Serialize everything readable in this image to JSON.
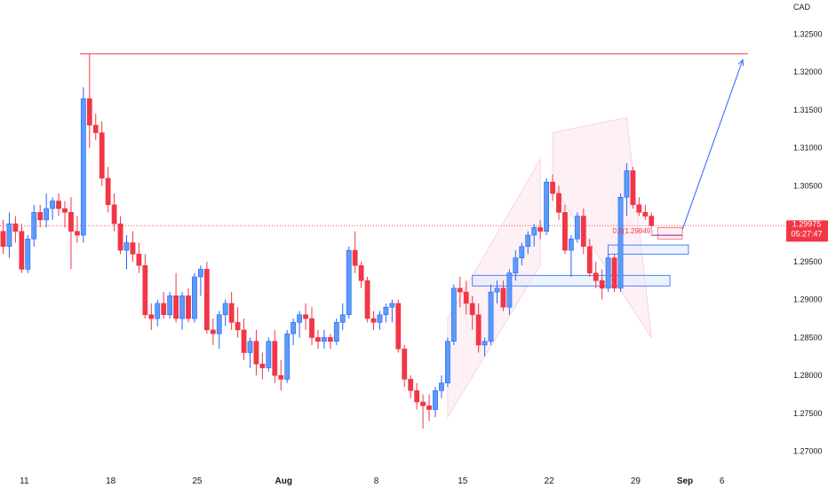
{
  "chart_data": {
    "type": "candlestick",
    "currency": "CAD",
    "ylim": [
      1.2675,
      1.3295
    ],
    "y_ticks": [
      "1.32500",
      "1.32000",
      "1.31500",
      "1.31000",
      "1.30500",
      "1.30000",
      "1.29500",
      "1.29000",
      "1.28500",
      "1.28000",
      "1.27500",
      "1.27000"
    ],
    "x_ticks": [
      {
        "label": "11",
        "bar": 3
      },
      {
        "label": "18",
        "bar": 17
      },
      {
        "label": "25",
        "bar": 31
      },
      {
        "label": "Aug",
        "bar": 45
      },
      {
        "label": "8",
        "bar": 60
      },
      {
        "label": "15",
        "bar": 74
      },
      {
        "label": "22",
        "bar": 88
      },
      {
        "label": "29",
        "bar": 102
      },
      {
        "label": "Sep",
        "bar": 110
      },
      {
        "label": "6",
        "bar": 116
      }
    ],
    "last_price": {
      "value": "1.29975",
      "countdown": "05:27:47",
      "numeric": 1.29975
    },
    "colors": {
      "up": "#5b9cf6",
      "down": "#f23645",
      "up_border": "#2962ff",
      "price_line": "#f23645",
      "annotation": "#f23645",
      "arrow": "#2962ff",
      "channel_fill": "#fce4ec"
    },
    "annotations": {
      "fib_label": "0.5(1.29849)",
      "resistance_level": 1.3224
    },
    "candles": [
      [
        1.299,
        1.3005,
        1.296,
        1.297
      ],
      [
        1.297,
        1.3015,
        1.2955,
        1.3
      ],
      [
        1.3,
        1.301,
        1.2975,
        1.299
      ],
      [
        1.299,
        1.3,
        1.2935,
        1.294
      ],
      [
        1.294,
        1.2985,
        1.2935,
        1.298
      ],
      [
        1.298,
        1.3025,
        1.297,
        1.3015
      ],
      [
        1.3015,
        1.3025,
        1.2995,
        1.3005
      ],
      [
        1.3005,
        1.304,
        1.2995,
        1.302
      ],
      [
        1.302,
        1.3035,
        1.3005,
        1.303
      ],
      [
        1.303,
        1.304,
        1.301,
        1.302
      ],
      [
        1.302,
        1.303,
        1.2995,
        1.3015
      ],
      [
        1.3015,
        1.3035,
        1.294,
        1.299
      ],
      [
        1.299,
        1.301,
        1.2975,
        1.2985
      ],
      [
        1.2985,
        1.318,
        1.2975,
        1.3165
      ],
      [
        1.3165,
        1.3224,
        1.31,
        1.313
      ],
      [
        1.313,
        1.3145,
        1.311,
        1.312
      ],
      [
        1.312,
        1.3135,
        1.305,
        1.306
      ],
      [
        1.306,
        1.3075,
        1.3015,
        1.3025
      ],
      [
        1.3025,
        1.304,
        1.299,
        1.3
      ],
      [
        1.3,
        1.301,
        1.296,
        1.2965
      ],
      [
        1.2965,
        1.2985,
        1.294,
        1.2975
      ],
      [
        1.2975,
        1.299,
        1.295,
        1.296
      ],
      [
        1.296,
        1.2975,
        1.2935,
        1.2945
      ],
      [
        1.2945,
        1.296,
        1.2875,
        1.288
      ],
      [
        1.288,
        1.2895,
        1.286,
        1.2875
      ],
      [
        1.2875,
        1.29,
        1.2865,
        1.2895
      ],
      [
        1.2895,
        1.291,
        1.2875,
        1.288
      ],
      [
        1.288,
        1.291,
        1.2875,
        1.2905
      ],
      [
        1.2905,
        1.2935,
        1.287,
        1.2875
      ],
      [
        1.2875,
        1.291,
        1.286,
        1.2905
      ],
      [
        1.2905,
        1.2915,
        1.287,
        1.2875
      ],
      [
        1.2875,
        1.2935,
        1.287,
        1.293
      ],
      [
        1.293,
        1.2945,
        1.2905,
        1.294
      ],
      [
        1.294,
        1.295,
        1.2855,
        1.286
      ],
      [
        1.286,
        1.2875,
        1.284,
        1.2855
      ],
      [
        1.2855,
        1.2885,
        1.2835,
        1.288
      ],
      [
        1.288,
        1.29,
        1.2865,
        1.2895
      ],
      [
        1.2895,
        1.291,
        1.286,
        1.287
      ],
      [
        1.287,
        1.289,
        1.285,
        1.286
      ],
      [
        1.286,
        1.2875,
        1.282,
        1.283
      ],
      [
        1.283,
        1.285,
        1.281,
        1.2845
      ],
      [
        1.2845,
        1.286,
        1.28,
        1.2815
      ],
      [
        1.2815,
        1.283,
        1.2795,
        1.281
      ],
      [
        1.281,
        1.285,
        1.2805,
        1.2845
      ],
      [
        1.2845,
        1.286,
        1.279,
        1.28
      ],
      [
        1.28,
        1.282,
        1.278,
        1.2795
      ],
      [
        1.2795,
        1.286,
        1.279,
        1.2855
      ],
      [
        1.2855,
        1.2875,
        1.284,
        1.287
      ],
      [
        1.287,
        1.2885,
        1.285,
        1.288
      ],
      [
        1.288,
        1.2895,
        1.286,
        1.2875
      ],
      [
        1.2875,
        1.289,
        1.284,
        1.285
      ],
      [
        1.285,
        1.286,
        1.2835,
        1.2845
      ],
      [
        1.2845,
        1.286,
        1.2835,
        1.285
      ],
      [
        1.285,
        1.2855,
        1.2835,
        1.2845
      ],
      [
        1.2845,
        1.2875,
        1.284,
        1.287
      ],
      [
        1.287,
        1.2895,
        1.286,
        1.288
      ],
      [
        1.288,
        1.297,
        1.2875,
        1.2965
      ],
      [
        1.2965,
        1.299,
        1.2935,
        1.2945
      ],
      [
        1.2945,
        1.295,
        1.2915,
        1.2925
      ],
      [
        1.2925,
        1.293,
        1.287,
        1.2875
      ],
      [
        1.2875,
        1.2885,
        1.286,
        1.287
      ],
      [
        1.287,
        1.2885,
        1.286,
        1.288
      ],
      [
        1.288,
        1.2895,
        1.287,
        1.289
      ],
      [
        1.289,
        1.29,
        1.287,
        1.2895
      ],
      [
        1.2895,
        1.29,
        1.283,
        1.2835
      ],
      [
        1.2835,
        1.284,
        1.2785,
        1.2795
      ],
      [
        1.2795,
        1.28,
        1.277,
        1.278
      ],
      [
        1.278,
        1.279,
        1.2755,
        1.2765
      ],
      [
        1.2765,
        1.2775,
        1.273,
        1.276
      ],
      [
        1.276,
        1.2775,
        1.274,
        1.2755
      ],
      [
        1.2755,
        1.2785,
        1.2745,
        1.278
      ],
      [
        1.278,
        1.28,
        1.277,
        1.279
      ],
      [
        1.279,
        1.285,
        1.2785,
        1.2845
      ],
      [
        1.2845,
        1.292,
        1.284,
        1.2915
      ],
      [
        1.2915,
        1.293,
        1.289,
        1.291
      ],
      [
        1.291,
        1.2925,
        1.288,
        1.2895
      ],
      [
        1.2895,
        1.2905,
        1.286,
        1.288
      ],
      [
        1.288,
        1.2895,
        1.283,
        1.284
      ],
      [
        1.284,
        1.285,
        1.2825,
        1.2845
      ],
      [
        1.2845,
        1.292,
        1.284,
        1.291
      ],
      [
        1.291,
        1.2925,
        1.2895,
        1.2915
      ],
      [
        1.2915,
        1.2925,
        1.2885,
        1.289
      ],
      [
        1.289,
        1.294,
        1.288,
        1.2935
      ],
      [
        1.2935,
        1.2965,
        1.2925,
        1.2955
      ],
      [
        1.2955,
        1.2975,
        1.2945,
        1.297
      ],
      [
        1.297,
        1.299,
        1.296,
        1.2985
      ],
      [
        1.2985,
        1.3,
        1.297,
        1.2995
      ],
      [
        1.2995,
        1.3005,
        1.298,
        1.299
      ],
      [
        1.299,
        1.306,
        1.2985,
        1.3055
      ],
      [
        1.3055,
        1.3065,
        1.303,
        1.304
      ],
      [
        1.304,
        1.305,
        1.3005,
        1.3015
      ],
      [
        1.3015,
        1.3025,
        1.296,
        1.2965
      ],
      [
        1.2965,
        1.2985,
        1.293,
        1.298
      ],
      [
        1.298,
        1.3015,
        1.2975,
        1.301
      ],
      [
        1.301,
        1.302,
        1.296,
        1.297
      ],
      [
        1.297,
        1.298,
        1.293,
        1.2935
      ],
      [
        1.2935,
        1.295,
        1.2915,
        1.2925
      ],
      [
        1.2925,
        1.294,
        1.29,
        1.2915
      ],
      [
        1.2915,
        1.296,
        1.291,
        1.2955
      ],
      [
        1.2955,
        1.296,
        1.291,
        1.2915
      ],
      [
        1.2915,
        1.304,
        1.291,
        1.3035
      ],
      [
        1.3035,
        1.308,
        1.301,
        1.307
      ],
      [
        1.307,
        1.3075,
        1.302,
        1.3025
      ],
      [
        1.3025,
        1.3035,
        1.301,
        1.3015
      ],
      [
        1.3015,
        1.3025,
        1.3005,
        1.301
      ],
      [
        1.301,
        1.3015,
        1.2995,
        1.29975
      ]
    ]
  }
}
